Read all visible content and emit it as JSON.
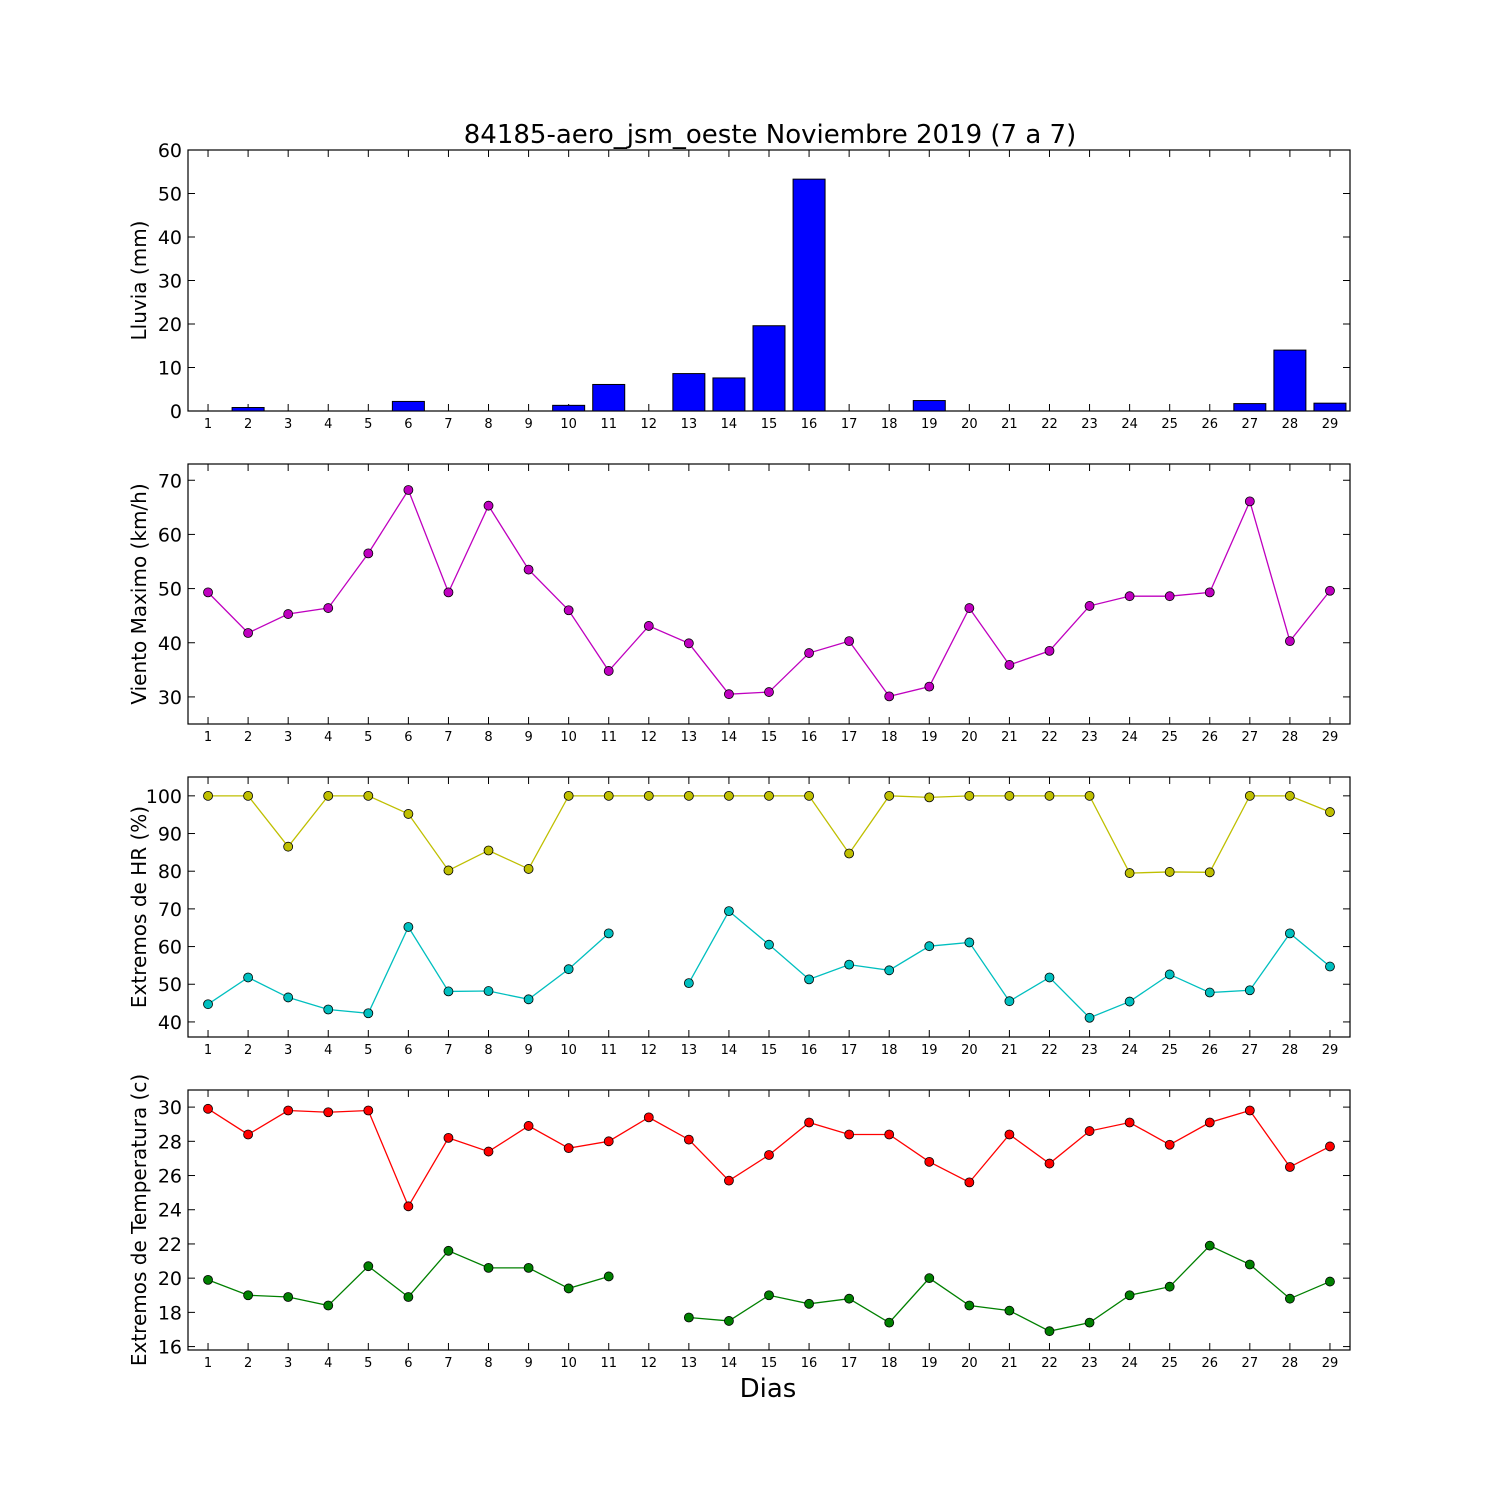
{
  "figure": {
    "title": "84185-aero_jsm_oeste Noviembre 2019  (7 a 7)",
    "xlabel": "Dias"
  },
  "chart_data": [
    {
      "type": "bar",
      "ylabel": "Lluvia (mm)",
      "ylim": [
        0,
        60
      ],
      "yticks": [
        0,
        10,
        20,
        30,
        40,
        50,
        60
      ],
      "x": [
        1,
        2,
        3,
        4,
        5,
        6,
        7,
        8,
        9,
        10,
        11,
        12,
        13,
        14,
        15,
        16,
        17,
        18,
        19,
        20,
        21,
        22,
        23,
        24,
        25,
        26,
        27,
        28,
        29
      ],
      "series": [
        {
          "color": "#0000ff",
          "values": [
            0,
            0.8,
            0,
            0,
            0,
            2.2,
            0,
            0,
            0,
            1.3,
            6.1,
            0,
            8.6,
            7.6,
            19.6,
            53.3,
            0,
            0,
            2.4,
            0,
            0,
            0,
            0,
            0,
            0,
            0,
            1.7,
            14.0,
            1.8
          ]
        }
      ],
      "grid": false
    },
    {
      "type": "line",
      "ylabel": "Viento Maximo (km/h)",
      "ylim": [
        25,
        73
      ],
      "yticks": [
        30,
        40,
        50,
        60,
        70
      ],
      "x": [
        1,
        2,
        3,
        4,
        5,
        6,
        7,
        8,
        9,
        10,
        11,
        12,
        13,
        14,
        15,
        16,
        17,
        18,
        19,
        20,
        21,
        22,
        23,
        24,
        25,
        26,
        27,
        28,
        29
      ],
      "series": [
        {
          "color": "#bf00bf",
          "values": [
            49.3,
            41.8,
            45.3,
            46.4,
            56.5,
            68.2,
            49.3,
            65.3,
            53.5,
            46.0,
            34.8,
            43.1,
            39.9,
            30.5,
            30.9,
            38.1,
            40.3,
            30.1,
            31.9,
            46.4,
            35.9,
            38.5,
            46.8,
            48.6,
            48.6,
            49.3,
            66.1,
            40.3,
            49.6
          ]
        }
      ],
      "grid": false
    },
    {
      "type": "line",
      "ylabel": "Extremos de HR (%)",
      "ylim": [
        36,
        105
      ],
      "yticks": [
        40,
        50,
        60,
        70,
        80,
        90,
        100
      ],
      "x": [
        1,
        2,
        3,
        4,
        5,
        6,
        7,
        8,
        9,
        10,
        11,
        12,
        13,
        14,
        15,
        16,
        17,
        18,
        19,
        20,
        21,
        22,
        23,
        24,
        25,
        26,
        27,
        28,
        29
      ],
      "series": [
        {
          "color": "#bfbf00",
          "values": [
            100,
            100,
            86.5,
            100,
            100,
            95.2,
            80.2,
            85.5,
            80.6,
            100,
            100,
            100,
            100,
            100,
            100,
            100,
            84.7,
            100,
            99.6,
            100,
            100,
            100,
            100,
            79.5,
            79.8,
            79.7,
            100,
            100,
            95.7
          ]
        },
        {
          "color": "#00bfbf",
          "values": [
            44.7,
            51.8,
            46.5,
            43.3,
            42.3,
            65.2,
            48.1,
            48.2,
            46.0,
            54.0,
            63.5,
            null,
            50.3,
            69.4,
            60.5,
            51.3,
            55.2,
            53.7,
            60.1,
            61.1,
            45.5,
            51.8,
            41.1,
            45.4,
            52.6,
            47.8,
            48.4,
            63.5,
            54.7
          ]
        }
      ],
      "grid": false
    },
    {
      "type": "line",
      "ylabel": "Extremos de Temperatura (c)",
      "ylim": [
        15.8,
        31
      ],
      "yticks": [
        16,
        18,
        20,
        22,
        24,
        26,
        28,
        30
      ],
      "x": [
        1,
        2,
        3,
        4,
        5,
        6,
        7,
        8,
        9,
        10,
        11,
        12,
        13,
        14,
        15,
        16,
        17,
        18,
        19,
        20,
        21,
        22,
        23,
        24,
        25,
        26,
        27,
        28,
        29
      ],
      "series": [
        {
          "color": "#ff0000",
          "values": [
            29.9,
            28.4,
            29.8,
            29.7,
            29.8,
            24.2,
            28.2,
            27.4,
            28.9,
            27.6,
            28.0,
            29.4,
            28.1,
            25.7,
            27.2,
            29.1,
            28.4,
            28.4,
            26.8,
            25.6,
            28.4,
            26.7,
            28.6,
            29.1,
            27.8,
            29.1,
            29.8,
            26.5,
            27.7
          ]
        },
        {
          "color": "#008000",
          "values": [
            19.9,
            19.0,
            18.9,
            18.4,
            20.7,
            18.9,
            21.6,
            20.6,
            20.6,
            19.4,
            20.1,
            null,
            17.7,
            17.5,
            19.0,
            18.5,
            18.8,
            17.4,
            20.0,
            18.4,
            18.1,
            16.9,
            17.4,
            19.0,
            19.5,
            21.9,
            20.8,
            18.8,
            19.8
          ]
        }
      ],
      "grid": false
    }
  ]
}
